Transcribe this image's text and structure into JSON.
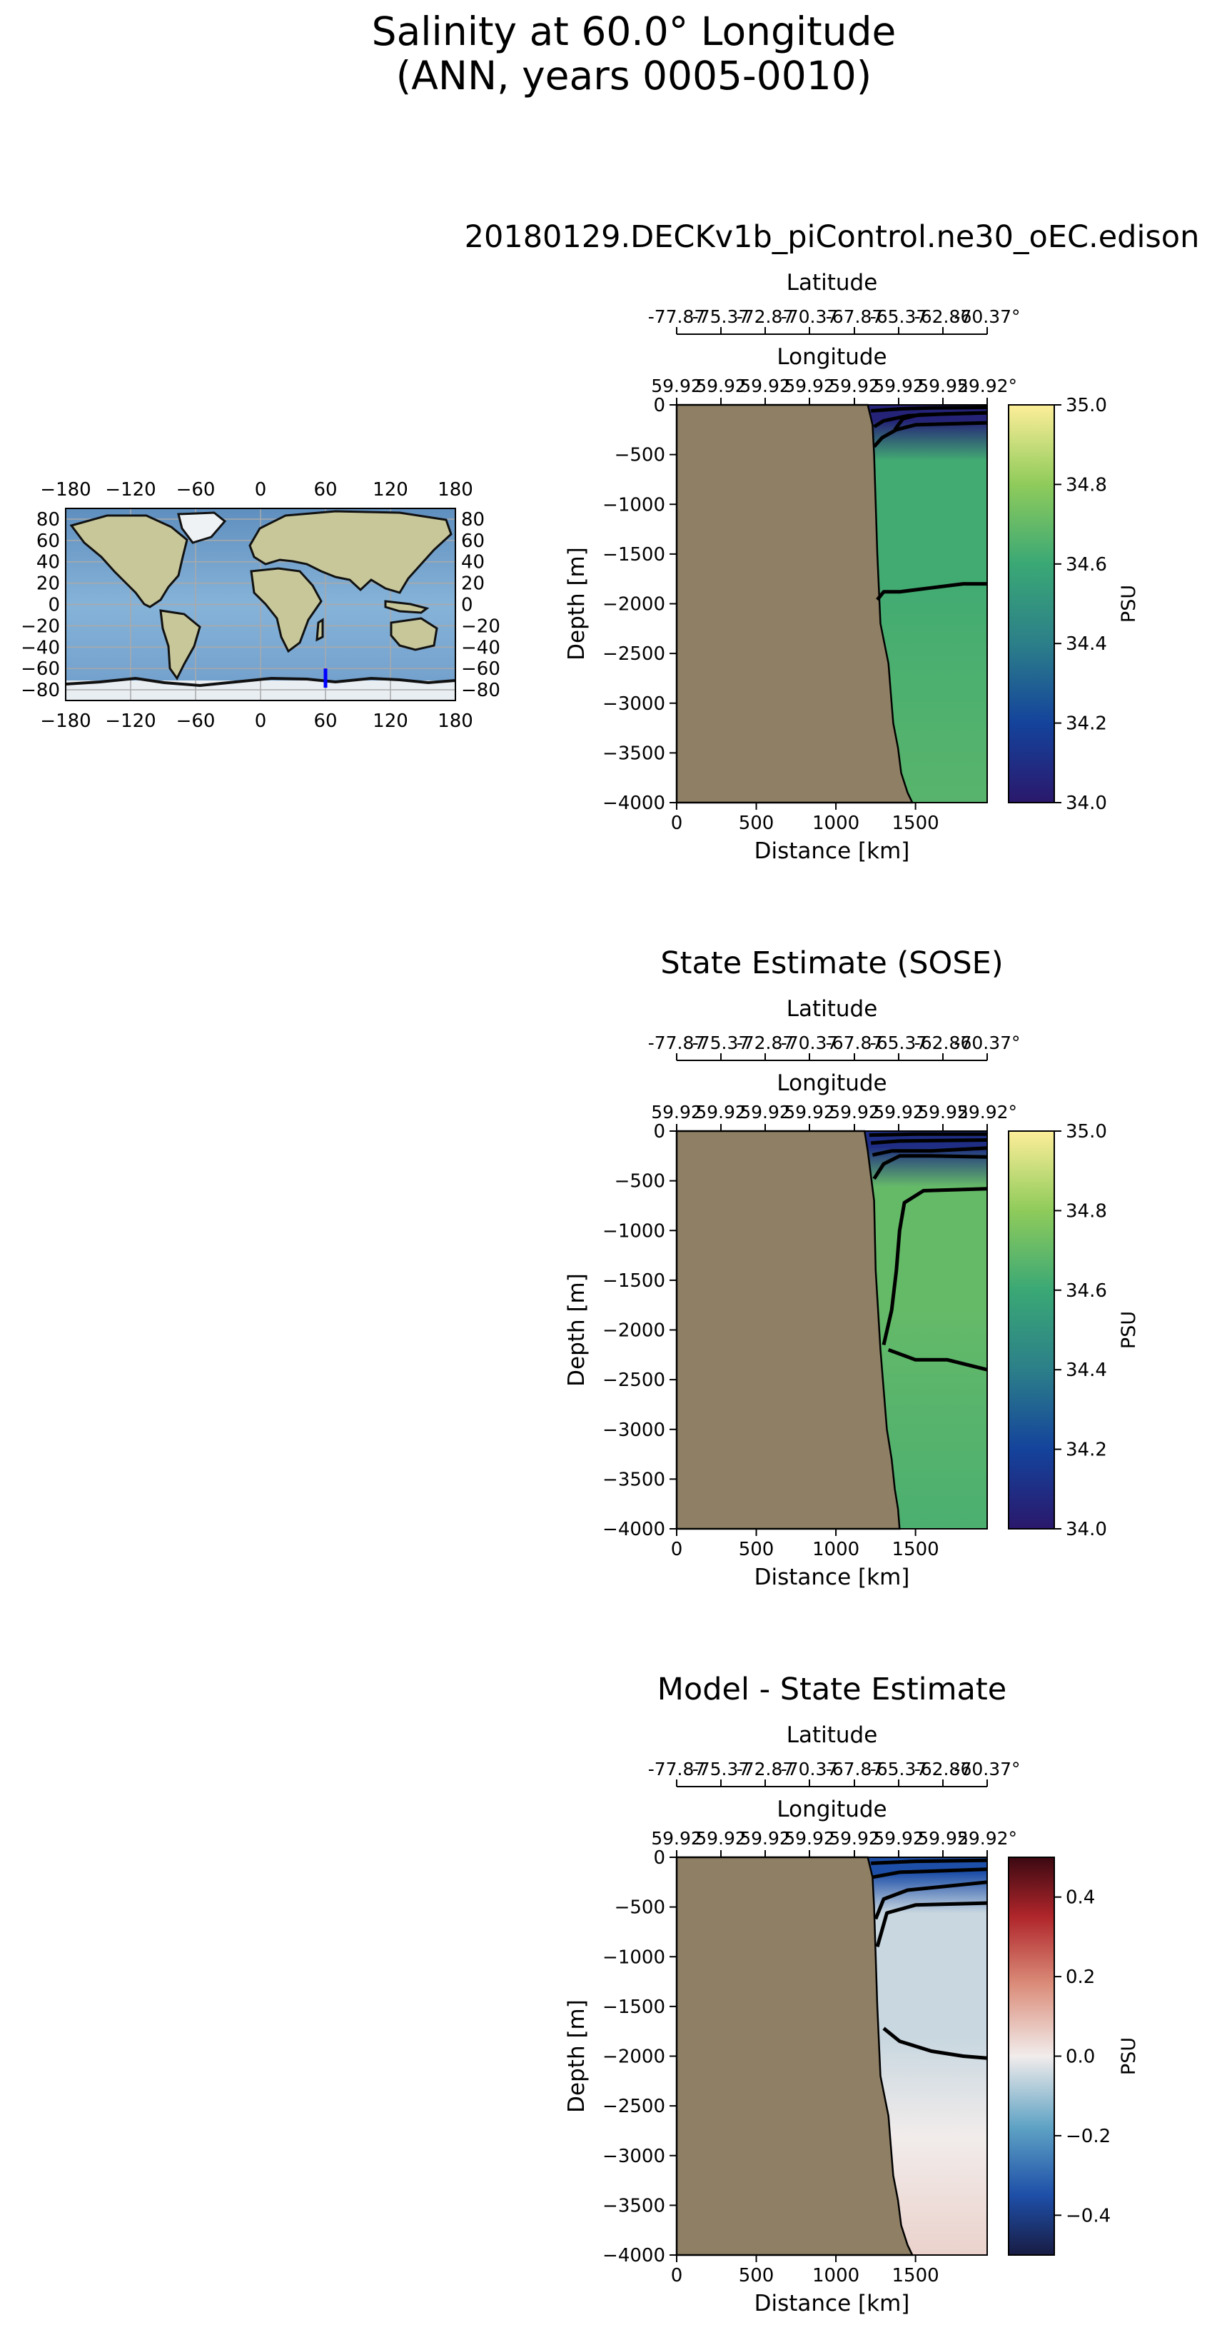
{
  "figure": {
    "title_line1": "Salinity at 60.0° Longitude",
    "title_line2": "(ANN, years 0005-0010)"
  },
  "colors": {
    "land": "#8f8065",
    "ocean_map": "#7faad0",
    "ice_map": "#e8edf2",
    "transect_line": "#0000ff"
  },
  "inset_map": {
    "lon_ticks": [
      "−180",
      "−120",
      "−60",
      "0",
      "60",
      "120",
      "180"
    ],
    "lat_ticks": [
      "80",
      "60",
      "40",
      "20",
      "0",
      "−20",
      "−40",
      "−60",
      "−80"
    ],
    "transect": {
      "lon": 60.0,
      "lat_min": -78,
      "lat_max": -60
    }
  },
  "chart_data": [
    {
      "type": "heatmap",
      "title": "20180129.DECKv1b_piControl.ne30_oEC.edison",
      "xlabel": "Distance [km]",
      "ylabel": "Depth [m]",
      "top_axis1_label": "Latitude",
      "top_axis2_label": "Longitude",
      "latitude_ticks": [
        "-77.87",
        "-75.37",
        "-72.87",
        "-70.37",
        "-67.87",
        "-65.37",
        "-62.87",
        "-60.37°"
      ],
      "longitude_ticks": [
        "59.92",
        "59.92",
        "59.92",
        "59.92",
        "59.92",
        "59.92",
        "59.92",
        "59.92°"
      ],
      "x_ticks": [
        0,
        500,
        1000,
        1500
      ],
      "x_tick_labels": [
        "0",
        "500",
        "1000",
        "1500"
      ],
      "xlim": [
        0,
        1950
      ],
      "y_ticks": [
        0,
        -500,
        -1000,
        -1500,
        -2000,
        -2500,
        -3000,
        -3500,
        -4000
      ],
      "y_tick_labels": [
        "0",
        "−500",
        "−1000",
        "−1500",
        "−2000",
        "−2500",
        "−3000",
        "−3500",
        "−4000"
      ],
      "ylim": [
        -4000,
        0
      ],
      "colorbar": {
        "label": "PSU",
        "min": 34.0,
        "max": 35.0,
        "ticks": [
          "34.0",
          "34.2",
          "34.4",
          "34.6",
          "34.8",
          "35.0"
        ],
        "tick_values": [
          34.0,
          34.2,
          34.4,
          34.6,
          34.8,
          35.0
        ],
        "colormap": "haline"
      },
      "field": {
        "interior": 34.62,
        "deep": 34.67,
        "surface": 34.05
      },
      "shelf_edge_km": [
        [
          1200,
          0
        ],
        [
          1230,
          -200
        ],
        [
          1240,
          -500
        ],
        [
          1260,
          -1500
        ],
        [
          1280,
          -2200
        ],
        [
          1330,
          -2600
        ],
        [
          1345,
          -2900
        ],
        [
          1360,
          -3200
        ],
        [
          1390,
          -3450
        ],
        [
          1410,
          -3700
        ],
        [
          1450,
          -3900
        ],
        [
          1480,
          -4000
        ]
      ],
      "contour_lines": [
        [
          [
            1220,
            -60
          ],
          [
            1400,
            -40
          ],
          [
            1600,
            -30
          ],
          [
            1950,
            -25
          ]
        ],
        [
          [
            1240,
            -220
          ],
          [
            1300,
            -160
          ],
          [
            1450,
            -110
          ],
          [
            1700,
            -90
          ],
          [
            1950,
            -80
          ]
        ],
        [
          [
            1240,
            -420
          ],
          [
            1290,
            -330
          ],
          [
            1380,
            -250
          ],
          [
            1500,
            -200
          ],
          [
            1950,
            -180
          ]
        ],
        [
          [
            1370,
            -250
          ],
          [
            1420,
            -140
          ],
          [
            1520,
            -100
          ],
          [
            1950,
            -80
          ]
        ],
        [
          [
            1260,
            -1960
          ],
          [
            1300,
            -1880
          ],
          [
            1400,
            -1880
          ],
          [
            1600,
            -1840
          ],
          [
            1800,
            -1800
          ],
          [
            1950,
            -1800
          ]
        ]
      ]
    },
    {
      "type": "heatmap",
      "title": "State Estimate (SOSE)",
      "xlabel": "Distance [km]",
      "ylabel": "Depth [m]",
      "top_axis1_label": "Latitude",
      "top_axis2_label": "Longitude",
      "latitude_ticks": [
        "-77.87",
        "-75.37",
        "-72.87",
        "-70.37",
        "-67.87",
        "-65.37",
        "-62.87",
        "-60.37°"
      ],
      "longitude_ticks": [
        "59.92",
        "59.92",
        "59.92",
        "59.92",
        "59.92",
        "59.92",
        "59.92",
        "59.92°"
      ],
      "x_ticks": [
        0,
        500,
        1000,
        1500
      ],
      "x_tick_labels": [
        "0",
        "500",
        "1000",
        "1500"
      ],
      "xlim": [
        0,
        1950
      ],
      "y_ticks": [
        0,
        -500,
        -1000,
        -1500,
        -2000,
        -2500,
        -3000,
        -3500,
        -4000
      ],
      "y_tick_labels": [
        "0",
        "−500",
        "−1000",
        "−1500",
        "−2000",
        "−2500",
        "−3000",
        "−3500",
        "−4000"
      ],
      "ylim": [
        -4000,
        0
      ],
      "colorbar": {
        "label": "PSU",
        "min": 34.0,
        "max": 35.0,
        "ticks": [
          "34.0",
          "34.2",
          "34.4",
          "34.6",
          "34.8",
          "35.0"
        ],
        "tick_values": [
          34.0,
          34.2,
          34.4,
          34.6,
          34.8,
          35.0
        ],
        "colormap": "haline"
      },
      "field": {
        "interior": 34.7,
        "deep": 34.64,
        "surface": 34.1
      },
      "shelf_edge_km": [
        [
          1180,
          0
        ],
        [
          1200,
          -200
        ],
        [
          1240,
          -700
        ],
        [
          1250,
          -1400
        ],
        [
          1280,
          -2200
        ],
        [
          1300,
          -2600
        ],
        [
          1320,
          -3000
        ],
        [
          1350,
          -3300
        ],
        [
          1370,
          -3600
        ],
        [
          1390,
          -3800
        ],
        [
          1400,
          -4000
        ]
      ],
      "contour_lines": [
        [
          [
            1210,
            -40
          ],
          [
            1500,
            -30
          ],
          [
            1950,
            -30
          ]
        ],
        [
          [
            1220,
            -120
          ],
          [
            1400,
            -100
          ],
          [
            1950,
            -90
          ]
        ],
        [
          [
            1230,
            -240
          ],
          [
            1350,
            -200
          ],
          [
            1600,
            -200
          ],
          [
            1950,
            -170
          ]
        ],
        [
          [
            1240,
            -480
          ],
          [
            1300,
            -330
          ],
          [
            1400,
            -250
          ],
          [
            1600,
            -250
          ],
          [
            1950,
            -260
          ]
        ],
        [
          [
            1300,
            -2150
          ],
          [
            1350,
            -1800
          ],
          [
            1380,
            -1400
          ],
          [
            1400,
            -1000
          ],
          [
            1430,
            -720
          ],
          [
            1550,
            -600
          ],
          [
            1950,
            -580
          ]
        ],
        [
          [
            1330,
            -2200
          ],
          [
            1500,
            -2300
          ],
          [
            1700,
            -2300
          ],
          [
            1950,
            -2400
          ]
        ]
      ]
    },
    {
      "type": "heatmap",
      "title": "Model - State Estimate",
      "xlabel": "Distance [km]",
      "ylabel": "Depth [m]",
      "top_axis1_label": "Latitude",
      "top_axis2_label": "Longitude",
      "latitude_ticks": [
        "-77.87",
        "-75.37",
        "-72.87",
        "-70.37",
        "-67.87",
        "-65.37",
        "-62.87",
        "-60.37°"
      ],
      "longitude_ticks": [
        "59.92",
        "59.92",
        "59.92",
        "59.92",
        "59.92",
        "59.92",
        "59.92",
        "59.92°"
      ],
      "x_ticks": [
        0,
        500,
        1000,
        1500
      ],
      "x_tick_labels": [
        "0",
        "500",
        "1000",
        "1500"
      ],
      "xlim": [
        0,
        1950
      ],
      "y_ticks": [
        0,
        -500,
        -1000,
        -1500,
        -2000,
        -2500,
        -3000,
        -3500,
        -4000
      ],
      "y_tick_labels": [
        "0",
        "−500",
        "−1000",
        "−1500",
        "−2000",
        "−2500",
        "−3000",
        "−3500",
        "−4000"
      ],
      "ylim": [
        -4000,
        0
      ],
      "colorbar": {
        "label": "PSU",
        "min": -0.5,
        "max": 0.5,
        "ticks": [
          "−0.4",
          "−0.2",
          "0.0",
          "0.2",
          "0.4"
        ],
        "tick_values": [
          -0.4,
          -0.2,
          0.0,
          0.2,
          0.4
        ],
        "colormap": "balance"
      },
      "field": {
        "interior": -0.05,
        "deep": 0.05,
        "surface": -0.35
      },
      "shelf_edge_km": [
        [
          1200,
          0
        ],
        [
          1230,
          -200
        ],
        [
          1240,
          -500
        ],
        [
          1260,
          -1500
        ],
        [
          1280,
          -2200
        ],
        [
          1330,
          -2600
        ],
        [
          1345,
          -2900
        ],
        [
          1360,
          -3200
        ],
        [
          1390,
          -3450
        ],
        [
          1410,
          -3700
        ],
        [
          1450,
          -3900
        ],
        [
          1480,
          -4000
        ]
      ],
      "contour_lines": [
        [
          [
            1220,
            -60
          ],
          [
            1500,
            -40
          ],
          [
            1950,
            -30
          ]
        ],
        [
          [
            1230,
            -200
          ],
          [
            1400,
            -150
          ],
          [
            1950,
            -120
          ]
        ],
        [
          [
            1250,
            -620
          ],
          [
            1300,
            -420
          ],
          [
            1450,
            -330
          ],
          [
            1950,
            -250
          ]
        ],
        [
          [
            1260,
            -900
          ],
          [
            1320,
            -560
          ],
          [
            1500,
            -480
          ],
          [
            1950,
            -460
          ]
        ],
        [
          [
            1300,
            -1720
          ],
          [
            1400,
            -1850
          ],
          [
            1600,
            -1950
          ],
          [
            1800,
            -2000
          ],
          [
            1950,
            -2020
          ]
        ]
      ]
    }
  ]
}
